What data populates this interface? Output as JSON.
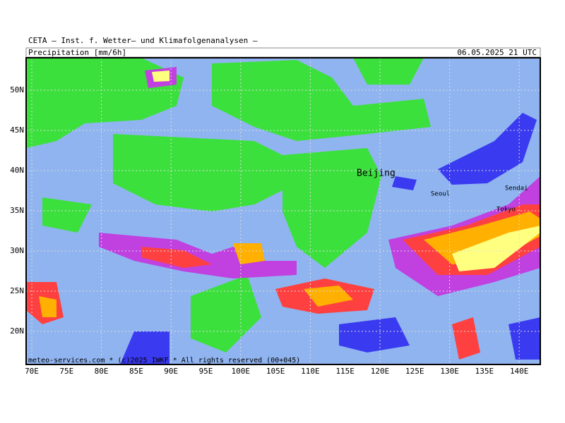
{
  "header": {
    "institute": "CETA – Inst. f. Wetter– und Klimafolgenanalysen –",
    "parameter": "Precipitation [mm/6h]",
    "valid_time": "06.05.2025 21 UTC"
  },
  "map": {
    "lat_labels": [
      "50N",
      "45N",
      "40N",
      "35N",
      "30N",
      "25N",
      "20N"
    ],
    "lon_labels": [
      "70E",
      "75E",
      "80E",
      "85E",
      "90E",
      "95E",
      "100E",
      "105E",
      "110E",
      "115E",
      "120E",
      "125E",
      "130E",
      "135E",
      "140E"
    ],
    "cities": [
      {
        "name": "Beijing"
      },
      {
        "name": "Seoul"
      },
      {
        "name": "Sendai"
      },
      {
        "name": "Tokyo"
      }
    ],
    "footer": "meteo-services.com * (c)2025 IWKF * All rights reserved (00+045)"
  }
}
